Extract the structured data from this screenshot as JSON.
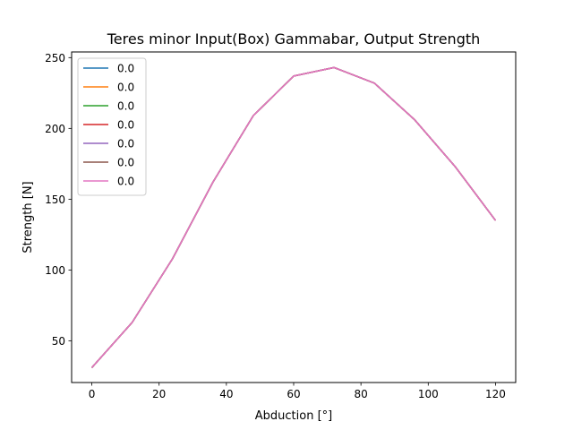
{
  "chart_data": {
    "type": "line",
    "title": "Teres minor Input(Box) Gammabar, Output Strength",
    "xlabel": "Abduction [°]",
    "ylabel": "Strength [N]",
    "xlim": [
      -6,
      126
    ],
    "ylim": [
      20.5,
      254
    ],
    "xticks": [
      0,
      20,
      40,
      60,
      80,
      100,
      120
    ],
    "yticks": [
      50,
      100,
      150,
      200,
      250
    ],
    "grid": false,
    "legend_position": "top-left",
    "x": [
      0,
      12,
      24,
      36,
      48,
      60,
      72,
      84,
      96,
      108,
      120
    ],
    "series": [
      {
        "name": "0.0",
        "color": "#1f77b4",
        "values": [
          31,
          63,
          108,
          162,
          209,
          237,
          243,
          232,
          206,
          173,
          135
        ]
      },
      {
        "name": "0.0",
        "color": "#ff7f0e",
        "values": [
          31,
          63,
          108,
          162,
          209,
          237,
          243,
          232,
          206,
          173,
          135
        ]
      },
      {
        "name": "0.0",
        "color": "#2ca02c",
        "values": [
          31,
          63,
          108,
          162,
          209,
          237,
          243,
          232,
          206,
          173,
          135
        ]
      },
      {
        "name": "0.0",
        "color": "#d62728",
        "values": [
          31,
          63,
          108,
          162,
          209,
          237,
          243,
          232,
          206,
          173,
          135
        ]
      },
      {
        "name": "0.0",
        "color": "#9467bd",
        "values": [
          31,
          63,
          108,
          162,
          209,
          237,
          243,
          232,
          206,
          173,
          135
        ]
      },
      {
        "name": "0.0",
        "color": "#8c564b",
        "values": [
          31,
          63,
          108,
          162,
          209,
          237,
          243,
          232,
          206,
          173,
          135
        ]
      },
      {
        "name": "0.0",
        "color": "#e377c2",
        "values": [
          31,
          63,
          108,
          162,
          209,
          237,
          243,
          232,
          206,
          173,
          135
        ]
      }
    ]
  }
}
